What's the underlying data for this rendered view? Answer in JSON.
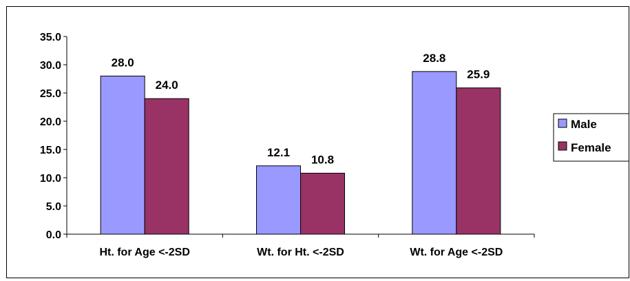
{
  "chart_data": {
    "type": "bar",
    "title": "",
    "xlabel": "",
    "ylabel": "",
    "categories": [
      "Ht. for Age <-2SD",
      "Wt. for Ht. <-2SD",
      "Wt. for Age <-2SD"
    ],
    "series": [
      {
        "name": "Male",
        "values": [
          28.0,
          12.1,
          28.8
        ],
        "labels": [
          "28.0",
          "12.1",
          "28.8"
        ],
        "color": "#9999ff"
      },
      {
        "name": "Female",
        "values": [
          24.0,
          10.8,
          25.9
        ],
        "labels": [
          "24.0",
          "10.8",
          "25.9"
        ],
        "color": "#993366"
      }
    ],
    "ylim": [
      0,
      35
    ],
    "yticks": [
      0,
      5,
      10,
      15,
      20,
      25,
      30,
      35
    ],
    "ytick_labels": [
      "0.0",
      "5.0",
      "10.0",
      "15.0",
      "20.0",
      "25.0",
      "30.0",
      "35.0"
    ],
    "grid": false,
    "legend": "right"
  }
}
